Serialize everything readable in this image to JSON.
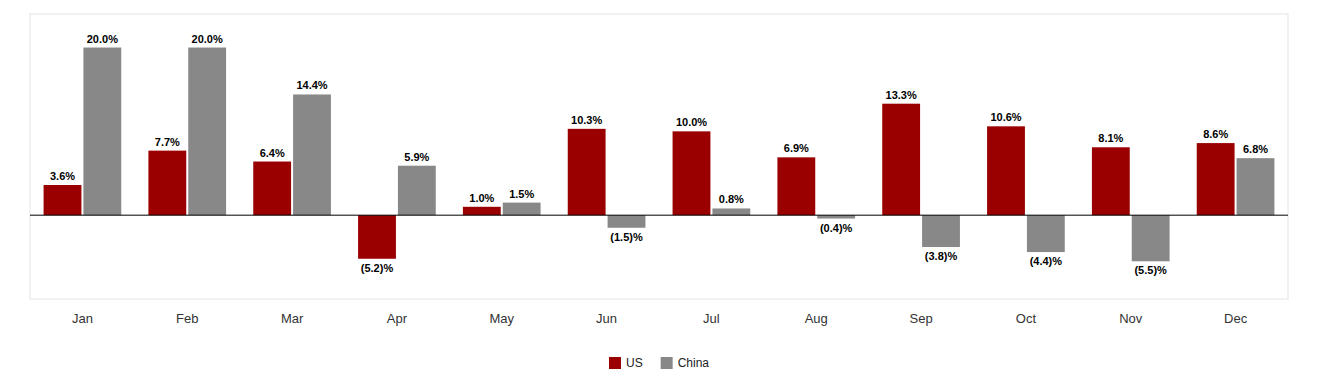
{
  "chart_data": {
    "type": "bar",
    "categories": [
      "Jan",
      "Feb",
      "Mar",
      "Apr",
      "May",
      "Jun",
      "Jul",
      "Aug",
      "Sep",
      "Oct",
      "Nov",
      "Dec"
    ],
    "series": [
      {
        "name": "US",
        "color": "#9B0000",
        "values": [
          3.6,
          7.7,
          6.4,
          -5.2,
          1.0,
          10.3,
          10.0,
          6.9,
          13.3,
          10.6,
          8.1,
          8.6
        ],
        "value_labels": [
          "3.6%",
          "7.7%",
          "6.4%",
          "(5.2)%",
          "1.0%",
          "10.3%",
          "10.0%",
          "6.9%",
          "13.3%",
          "10.6%",
          "8.1%",
          "8.6%"
        ]
      },
      {
        "name": "China",
        "color": "#888888",
        "values": [
          20.0,
          20.0,
          14.4,
          5.9,
          1.5,
          -1.5,
          0.8,
          -0.4,
          -3.8,
          -4.4,
          -5.5,
          6.8
        ],
        "value_labels": [
          "20.0%",
          "20.0%",
          "14.4%",
          "5.9%",
          "1.5%",
          "(1.5)%",
          "0.8%",
          "(0.4)%",
          "(3.8)%",
          "(4.4)%",
          "(5.5)%",
          "6.8%"
        ]
      }
    ],
    "ylim": [
      -10,
      24
    ],
    "data_labels": true,
    "tick_labels": "x",
    "grid": false,
    "legend": "bottom"
  }
}
